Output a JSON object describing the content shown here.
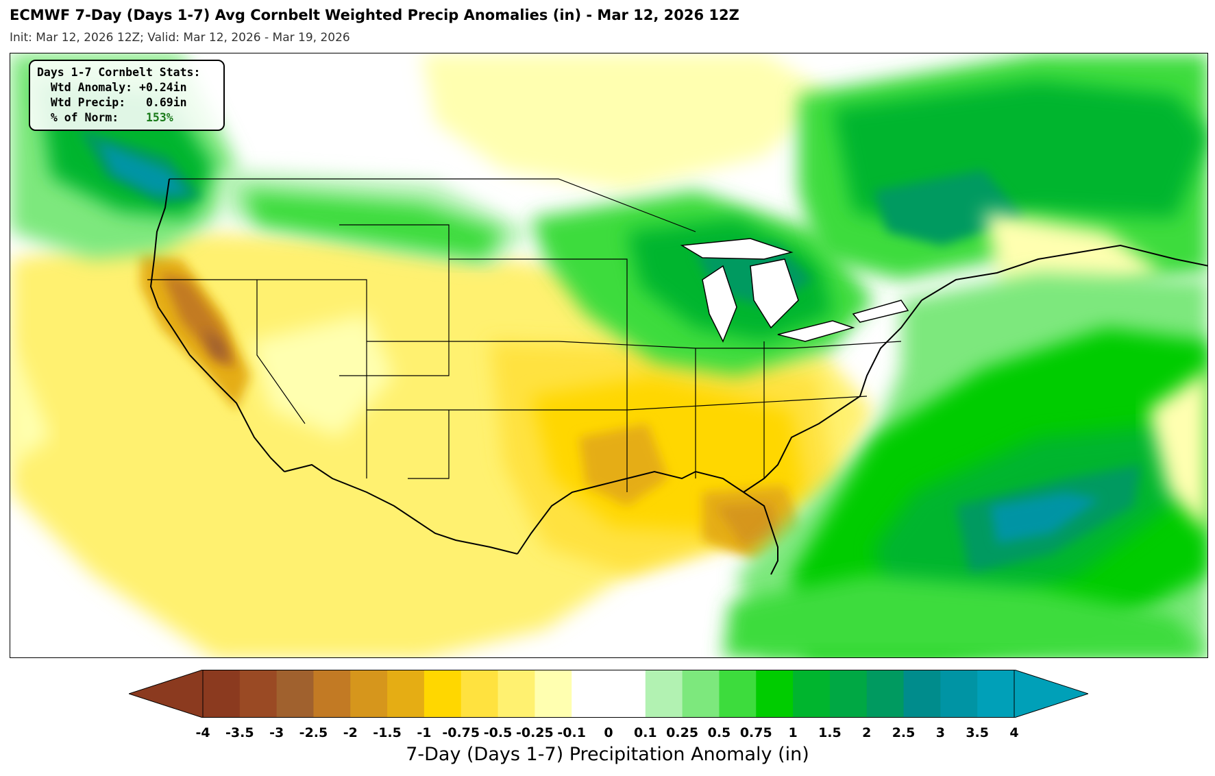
{
  "header": {
    "title": "ECMWF 7-Day (Days 1-7) Avg Cornbelt Weighted Precip Anomalies (in) - Mar 12, 2026 12Z",
    "subtitle": "Init: Mar 12, 2026 12Z; Valid: Mar 12, 2026 - Mar 19, 2026"
  },
  "stats": {
    "heading": "Days 1-7 Cornbelt Stats:",
    "anomaly_label": "  Wtd Anomaly:",
    "anomaly_value": "+0.24in",
    "precip_label": "  Wtd Precip:",
    "precip_value": "0.69in",
    "norm_label": "  % of Norm:",
    "norm_value": "153%"
  },
  "colorbar": {
    "label": "7-Day (Days 1-7) Precipitation Anomaly (in)",
    "ticks": [
      "-4",
      "-3.5",
      "-3",
      "-2.5",
      "-2",
      "-1.5",
      "-1",
      "-0.75",
      "-0.5",
      "-0.25",
      "-0.1",
      "0",
      "0.1",
      "0.25",
      "0.5",
      "0.75",
      "1",
      "1.5",
      "2",
      "2.5",
      "3",
      "3.5",
      "4"
    ],
    "colors": [
      "#8b3a1f",
      "#9a4a24",
      "#a0612e",
      "#c27a24",
      "#d6961c",
      "#e5ad14",
      "#ffd700",
      "#ffe23f",
      "#fff170",
      "#ffffb0",
      "#ffffff",
      "#ffffff",
      "#b2f2b2",
      "#7de87d",
      "#3ddc3d",
      "#00cc00",
      "#00b52e",
      "#00a844",
      "#009a60",
      "#008c8c",
      "#0094a4",
      "#00a0b8"
    ],
    "low_extend_color": "#8b3a1f",
    "high_extend_color": "#00a0b8"
  },
  "map": {
    "land_base": "#fff7a8",
    "ocean": "#ffffff",
    "coast": "#000000"
  }
}
